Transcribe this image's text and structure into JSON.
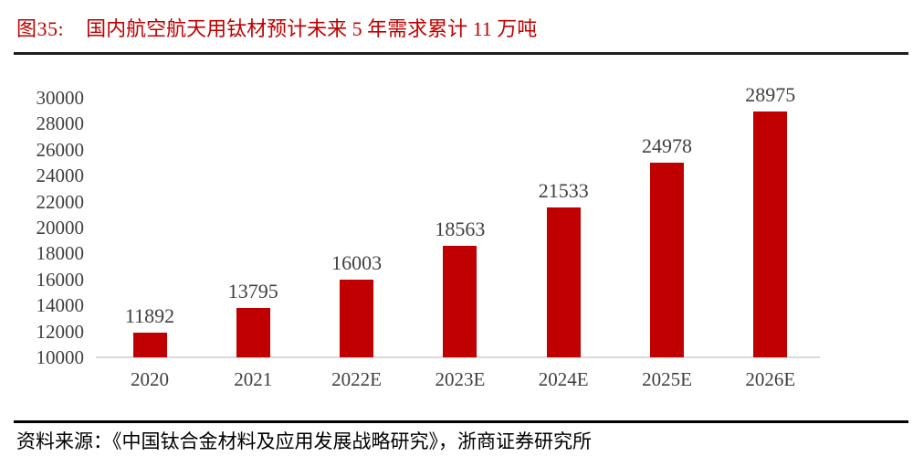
{
  "figure": {
    "label": "图35:",
    "title": "国内航空航天用钛材预计未来 5 年需求累计 11 万吨"
  },
  "source": {
    "text": "资料来源：《中国钛合金材料及应用发展战略研究》，浙商证券研究所"
  },
  "colors": {
    "title_red": "#C00000",
    "bar_red": "#C00000",
    "label_gray": "#404040",
    "axis_gray": "#D9D9D9",
    "title_rule": "#1F1F1F",
    "source_rule": "#000000"
  },
  "chart_data": {
    "type": "bar",
    "title": "国内航空航天用钛材预计未来 5 年需求累计 11 万吨",
    "categories": [
      "2020",
      "2021",
      "2022E",
      "2023E",
      "2024E",
      "2025E",
      "2026E"
    ],
    "values": [
      11892,
      13795,
      16003,
      18563,
      21533,
      24978,
      28975
    ],
    "xlabel": "",
    "ylabel": "",
    "ylim": [
      10000,
      30000
    ],
    "ytick_step": 2000,
    "ytick_labels": [
      "10000",
      "12000",
      "14000",
      "16000",
      "18000",
      "20000",
      "22000",
      "24000",
      "26000",
      "28000",
      "30000"
    ],
    "grid": false,
    "legend": null,
    "data_labels_shown": true
  }
}
